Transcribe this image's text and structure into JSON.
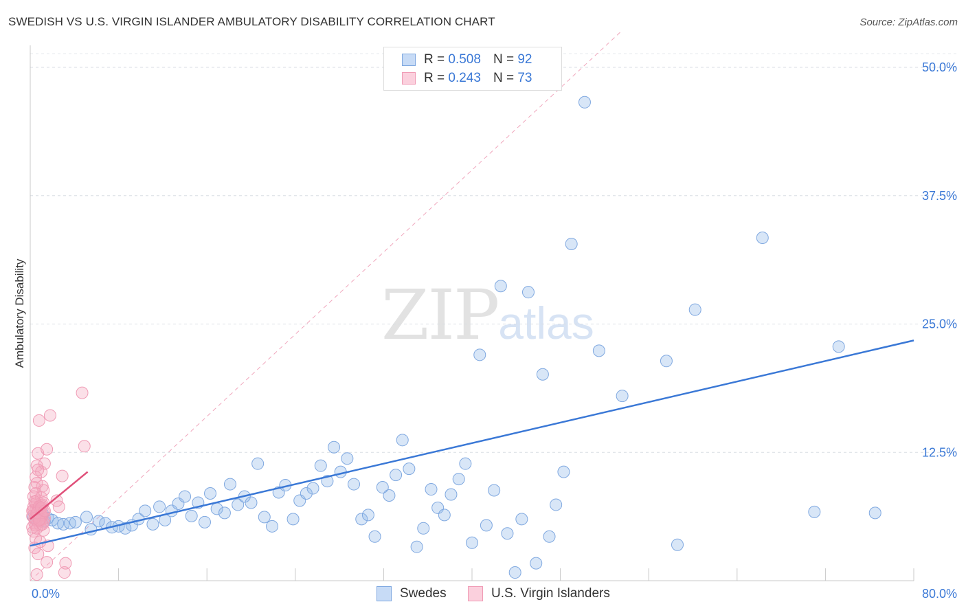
{
  "header": {
    "title": "SWEDISH VS U.S. VIRGIN ISLANDER AMBULATORY DISABILITY CORRELATION CHART",
    "source": "Source: ZipAtlas.com"
  },
  "watermark": {
    "zip": "ZIP",
    "atlas": "atlas"
  },
  "legend": {
    "r_label": "R =",
    "n_label": "N =",
    "rows": [
      {
        "r": "0.508",
        "n": "92",
        "color": "#8fb6e8"
      },
      {
        "r": "0.243",
        "n": "73",
        "color": "#f4a6bd"
      }
    ]
  },
  "chart_data": {
    "type": "scatter",
    "title": "SWEDISH VS U.S. VIRGIN ISLANDER AMBULATORY DISABILITY CORRELATION CHART",
    "xlabel": "",
    "ylabel": "Ambulatory Disability",
    "xlim": [
      0,
      80
    ],
    "ylim": [
      0,
      50
    ],
    "x_tick_labels": [
      "0.0%",
      "80.0%"
    ],
    "y_tick_labels": [
      "12.5%",
      "25.0%",
      "37.5%",
      "50.0%"
    ],
    "y_ticks": [
      12.5,
      25.0,
      37.5,
      50.0
    ],
    "grid": true,
    "legend_position": "top-center",
    "series": [
      {
        "name": "Swedes",
        "color": "#8fb6e8",
        "line_color": "#3a78d6",
        "trend": {
          "x": [
            0,
            80
          ],
          "y": [
            3.4,
            23.4
          ]
        },
        "points": [
          [
            0.3,
            6.2
          ],
          [
            0.5,
            5.9
          ],
          [
            0.7,
            6.4
          ],
          [
            0.9,
            6.0
          ],
          [
            1.1,
            6.6
          ],
          [
            1.3,
            5.8
          ],
          [
            1.6,
            6.1
          ],
          [
            2.0,
            5.9
          ],
          [
            2.5,
            5.6
          ],
          [
            3.0,
            5.5
          ],
          [
            3.6,
            5.6
          ],
          [
            4.1,
            5.7
          ],
          [
            5.1,
            6.2
          ],
          [
            5.5,
            5.0
          ],
          [
            6.2,
            5.8
          ],
          [
            6.8,
            5.6
          ],
          [
            7.4,
            5.2
          ],
          [
            8.0,
            5.3
          ],
          [
            8.6,
            5.1
          ],
          [
            9.2,
            5.4
          ],
          [
            9.8,
            6.0
          ],
          [
            10.4,
            6.8
          ],
          [
            11.1,
            5.5
          ],
          [
            11.7,
            7.2
          ],
          [
            12.2,
            5.9
          ],
          [
            12.8,
            6.8
          ],
          [
            13.4,
            7.5
          ],
          [
            14.0,
            8.2
          ],
          [
            14.6,
            6.3
          ],
          [
            15.2,
            7.6
          ],
          [
            15.8,
            5.7
          ],
          [
            16.3,
            8.5
          ],
          [
            16.9,
            7.0
          ],
          [
            17.6,
            6.6
          ],
          [
            18.1,
            9.4
          ],
          [
            18.8,
            7.4
          ],
          [
            19.4,
            8.2
          ],
          [
            20.0,
            7.6
          ],
          [
            20.6,
            11.4
          ],
          [
            21.2,
            6.2
          ],
          [
            21.9,
            5.3
          ],
          [
            22.5,
            8.6
          ],
          [
            23.1,
            9.3
          ],
          [
            23.8,
            6.0
          ],
          [
            24.4,
            7.8
          ],
          [
            25.0,
            8.5
          ],
          [
            25.6,
            9.0
          ],
          [
            26.3,
            11.2
          ],
          [
            26.9,
            9.7
          ],
          [
            27.5,
            13.0
          ],
          [
            28.1,
            10.6
          ],
          [
            28.7,
            11.9
          ],
          [
            29.3,
            9.4
          ],
          [
            30.0,
            6.0
          ],
          [
            30.6,
            6.4
          ],
          [
            31.2,
            4.3
          ],
          [
            31.9,
            9.1
          ],
          [
            32.5,
            8.3
          ],
          [
            33.1,
            10.3
          ],
          [
            33.7,
            13.7
          ],
          [
            34.3,
            10.9
          ],
          [
            35.0,
            3.3
          ],
          [
            35.6,
            5.1
          ],
          [
            36.3,
            8.9
          ],
          [
            36.9,
            7.1
          ],
          [
            37.5,
            6.4
          ],
          [
            38.1,
            8.4
          ],
          [
            38.8,
            9.9
          ],
          [
            39.4,
            11.4
          ],
          [
            40.0,
            3.7
          ],
          [
            40.7,
            22.0
          ],
          [
            41.3,
            5.4
          ],
          [
            42.0,
            8.8
          ],
          [
            42.6,
            28.7
          ],
          [
            43.2,
            4.6
          ],
          [
            43.9,
            0.8
          ],
          [
            44.5,
            6.0
          ],
          [
            45.1,
            28.1
          ],
          [
            45.8,
            1.7
          ],
          [
            46.4,
            20.1
          ],
          [
            47.0,
            4.3
          ],
          [
            47.6,
            7.4
          ],
          [
            48.3,
            10.6
          ],
          [
            49.0,
            32.8
          ],
          [
            50.2,
            46.6
          ],
          [
            51.5,
            22.4
          ],
          [
            53.6,
            18.0
          ],
          [
            57.6,
            21.4
          ],
          [
            58.6,
            3.5
          ],
          [
            60.2,
            26.4
          ],
          [
            66.3,
            33.4
          ],
          [
            71.0,
            6.7
          ],
          [
            73.2,
            22.8
          ],
          [
            76.5,
            6.6
          ]
        ]
      },
      {
        "name": "U.S. Virgin Islanders",
        "color": "#f4a6bd",
        "line_color": "#e0507a",
        "trend": {
          "x": [
            0,
            5.2
          ],
          "y": [
            6.0,
            10.6
          ]
        },
        "points": [
          [
            0.2,
            6.8
          ],
          [
            0.3,
            7.2
          ],
          [
            0.4,
            6.0
          ],
          [
            0.5,
            7.5
          ],
          [
            0.6,
            6.4
          ],
          [
            0.7,
            7.0
          ],
          [
            0.8,
            5.8
          ],
          [
            0.9,
            6.6
          ],
          [
            1.0,
            7.3
          ],
          [
            0.3,
            8.2
          ],
          [
            0.4,
            5.6
          ],
          [
            0.5,
            6.9
          ],
          [
            0.6,
            7.8
          ],
          [
            0.7,
            6.2
          ],
          [
            0.8,
            7.1
          ],
          [
            0.9,
            6.5
          ],
          [
            1.0,
            5.9
          ],
          [
            1.1,
            7.4
          ],
          [
            1.2,
            6.7
          ],
          [
            1.3,
            6.1
          ],
          [
            0.2,
            5.2
          ],
          [
            0.3,
            4.8
          ],
          [
            0.4,
            9.1
          ],
          [
            0.5,
            10.1
          ],
          [
            0.6,
            11.2
          ],
          [
            0.7,
            12.4
          ],
          [
            0.8,
            15.6
          ],
          [
            1.0,
            10.6
          ],
          [
            1.1,
            9.2
          ],
          [
            1.2,
            8.8
          ],
          [
            1.3,
            11.4
          ],
          [
            1.5,
            12.8
          ],
          [
            1.8,
            16.1
          ],
          [
            0.4,
            3.2
          ],
          [
            0.5,
            4.1
          ],
          [
            0.7,
            2.6
          ],
          [
            0.9,
            3.8
          ],
          [
            1.2,
            4.9
          ],
          [
            1.5,
            1.8
          ],
          [
            1.6,
            3.4
          ],
          [
            0.6,
            0.6
          ],
          [
            0.9,
            5.4
          ],
          [
            1.2,
            5.7
          ],
          [
            2.4,
            7.8
          ],
          [
            2.6,
            7.2
          ],
          [
            2.9,
            10.2
          ],
          [
            3.1,
            0.8
          ],
          [
            3.2,
            1.7
          ],
          [
            4.7,
            18.3
          ],
          [
            4.9,
            13.1
          ],
          [
            0.5,
            8.5
          ],
          [
            0.6,
            9.5
          ],
          [
            0.7,
            10.8
          ],
          [
            0.8,
            6.2
          ],
          [
            0.9,
            7.0
          ],
          [
            1.0,
            8.1
          ],
          [
            1.1,
            6.3
          ],
          [
            1.2,
            7.6
          ],
          [
            0.2,
            6.3
          ],
          [
            0.3,
            6.9
          ],
          [
            0.4,
            7.7
          ],
          [
            0.5,
            5.4
          ],
          [
            0.6,
            5.1
          ],
          [
            0.7,
            6.8
          ],
          [
            0.8,
            7.2
          ],
          [
            0.9,
            6.0
          ],
          [
            1.0,
            6.4
          ],
          [
            1.1,
            5.5
          ],
          [
            0.4,
            6.1
          ],
          [
            0.6,
            6.6
          ],
          [
            0.8,
            5.9
          ],
          [
            1.0,
            7.1
          ],
          [
            1.3,
            6.8
          ]
        ]
      }
    ]
  },
  "bottom_legend": [
    {
      "label": "Swedes",
      "color": "#8fb6e8"
    },
    {
      "label": "U.S. Virgin Islanders",
      "color": "#f4a6bd"
    }
  ]
}
